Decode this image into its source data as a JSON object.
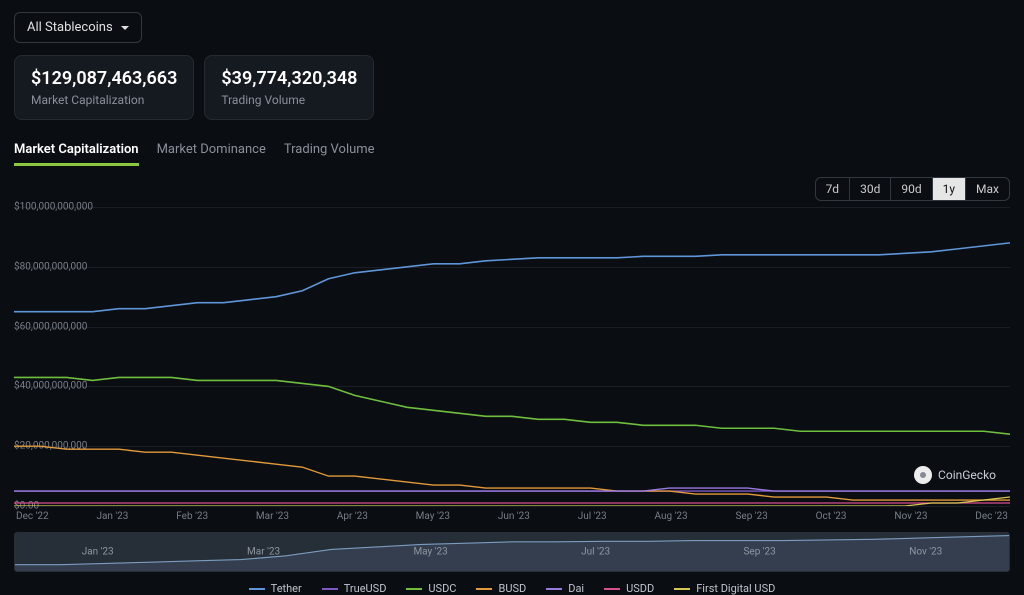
{
  "dropdown": {
    "label": "All Stablecoins"
  },
  "cards": {
    "marketcap": {
      "value": "$129,087,463,663",
      "label": "Market Capitalization"
    },
    "volume": {
      "value": "$39,774,320,348",
      "label": "Trading Volume"
    }
  },
  "tabs": {
    "items": [
      "Market Capitalization",
      "Market Dominance",
      "Trading Volume"
    ],
    "active_index": 0
  },
  "range": {
    "options": [
      "7d",
      "30d",
      "90d",
      "1y",
      "Max"
    ],
    "active_index": 3
  },
  "chart": {
    "type": "line",
    "background_color": "#0a0d12",
    "grid_color": "#1a1e25",
    "axis_label_color": "#787e87",
    "axis_label_fontsize": 10,
    "ylim": [
      0,
      100000000000
    ],
    "ytick_step": 20000000000,
    "yticks": [
      {
        "v": 0,
        "label": "$0.00"
      },
      {
        "v": 20000000000,
        "label": "$20,000,000,000"
      },
      {
        "v": 40000000000,
        "label": "$40,000,000,000"
      },
      {
        "v": 60000000000,
        "label": "$60,000,000,000"
      },
      {
        "v": 80000000000,
        "label": "$80,000,000,000"
      },
      {
        "v": 100000000000,
        "label": "$100,000,000,000"
      }
    ],
    "x_labels": [
      "Dec '22",
      "Jan '23",
      "Feb '23",
      "Mar '23",
      "Apr '23",
      "May '23",
      "Jun '23",
      "Jul '23",
      "Aug '23",
      "Sep '23",
      "Oct '23",
      "Nov '23",
      "Dec '23"
    ],
    "series": [
      {
        "name": "Tether",
        "color": "#5f96d9",
        "width": 1.6,
        "values": [
          65,
          65,
          65,
          65,
          66,
          66,
          67,
          68,
          68,
          69,
          70,
          72,
          76,
          78,
          79,
          80,
          81,
          81,
          82,
          82.5,
          83,
          83,
          83,
          83,
          83.5,
          83.5,
          83.5,
          84,
          84,
          84,
          84,
          84,
          84,
          84,
          84.5,
          85,
          86,
          87,
          88
        ]
      },
      {
        "name": "TrueUSD",
        "color": "#7e57c2",
        "width": 1.4,
        "values": [
          5,
          5,
          5,
          5,
          5,
          5,
          5,
          5,
          5,
          5,
          5,
          5,
          5,
          5,
          5,
          5,
          5,
          5,
          5,
          5,
          5,
          5,
          5,
          5,
          5,
          5,
          5,
          5,
          5,
          5,
          5,
          5,
          5,
          5,
          5,
          5,
          5,
          5,
          5
        ]
      },
      {
        "name": "USDC",
        "color": "#6fbf3f",
        "width": 1.6,
        "values": [
          43,
          43,
          43,
          42,
          43,
          43,
          43,
          42,
          42,
          42,
          42,
          41,
          40,
          37,
          35,
          33,
          32,
          31,
          30,
          30,
          29,
          29,
          28,
          28,
          27,
          27,
          27,
          26,
          26,
          26,
          25,
          25,
          25,
          25,
          25,
          25,
          25,
          25,
          24
        ]
      },
      {
        "name": "BUSD",
        "color": "#e39a3b",
        "width": 1.4,
        "values": [
          20,
          20,
          19,
          19,
          19,
          18,
          18,
          17,
          16,
          15,
          14,
          13,
          10,
          10,
          9,
          8,
          7,
          7,
          6,
          6,
          6,
          6,
          6,
          5,
          5,
          5,
          4,
          4,
          4,
          3,
          3,
          3,
          2,
          2,
          2,
          2,
          2,
          2,
          2
        ]
      },
      {
        "name": "Dai",
        "color": "#9a7adf",
        "width": 1.4,
        "values": [
          5,
          5,
          5,
          5,
          5,
          5,
          5,
          5,
          5,
          5,
          5,
          5,
          5,
          5,
          5,
          5,
          5,
          5,
          5,
          5,
          5,
          5,
          5,
          5,
          5,
          6,
          6,
          6,
          6,
          5,
          5,
          5,
          5,
          5,
          5,
          5,
          5,
          5,
          5
        ]
      },
      {
        "name": "USDD",
        "color": "#d84f8e",
        "width": 1.2,
        "values": [
          1,
          1,
          1,
          1,
          1,
          1,
          1,
          1,
          1,
          1,
          1,
          1,
          1,
          1,
          1,
          1,
          1,
          1,
          1,
          1,
          1,
          1,
          1,
          1,
          1,
          1,
          1,
          1,
          1,
          1,
          1,
          1,
          1,
          1,
          1,
          1,
          1,
          1,
          1
        ]
      },
      {
        "name": "First Digital USD",
        "color": "#d8c74f",
        "width": 1.2,
        "values": [
          0,
          0,
          0,
          0,
          0,
          0,
          0,
          0,
          0,
          0,
          0,
          0,
          0,
          0,
          0,
          0,
          0,
          0,
          0,
          0,
          0,
          0,
          0,
          0,
          0,
          0,
          0,
          0,
          0,
          0,
          0,
          0,
          0,
          0,
          0,
          1,
          1,
          2,
          3
        ]
      }
    ],
    "value_scale_note": "series.values are in billions USD (multiply by 1e9 to compare to ylim)"
  },
  "overview": {
    "x_labels": [
      "Jan '23",
      "Mar '23",
      "May '23",
      "Jul '23",
      "Sep '23",
      "Nov '23"
    ],
    "line_color": "#7c9cbf",
    "fill_color": "#3a465a",
    "values": [
      65,
      65,
      66,
      67,
      68,
      69,
      72,
      77,
      79,
      81,
      82,
      83,
      83,
      83.5,
      83.5,
      84,
      84,
      84,
      84.5,
      85,
      86,
      87,
      88
    ]
  },
  "legend": {
    "items": [
      {
        "name": "Tether",
        "color": "#5f96d9"
      },
      {
        "name": "TrueUSD",
        "color": "#7e57c2"
      },
      {
        "name": "USDC",
        "color": "#6fbf3f"
      },
      {
        "name": "BUSD",
        "color": "#e39a3b"
      },
      {
        "name": "Dai",
        "color": "#9a7adf"
      },
      {
        "name": "USDD",
        "color": "#d84f8e"
      },
      {
        "name": "First Digital USD",
        "color": "#d8c74f"
      }
    ]
  },
  "attribution": {
    "label": "CoinGecko"
  }
}
